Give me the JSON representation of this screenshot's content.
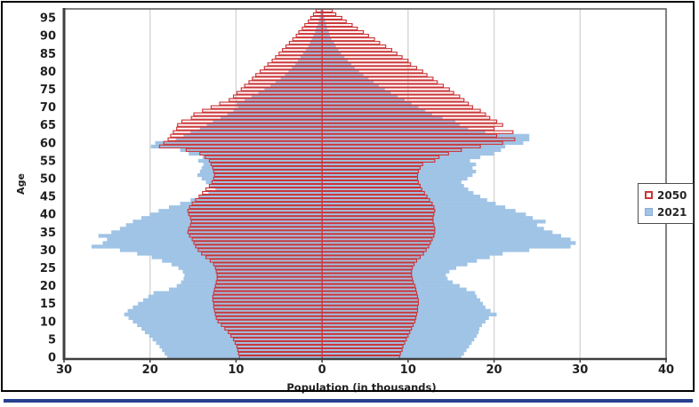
{
  "figure": {
    "frame_border_color": "#000000",
    "bottom_rule_color": "#27418F",
    "plot_border_color": "#595959",
    "axis_line_color": "#3f3f3f",
    "gridline_color": "#d6d6d6",
    "tick_text_color": "#1f1f1f",
    "background": "#ffffff"
  },
  "chart_data": {
    "type": "bar",
    "subtype": "population-pyramid",
    "title": "",
    "xlabel": "Population (in thousands)",
    "ylabel": "Age",
    "xlim": [
      -30,
      40
    ],
    "x_tick_values": [
      -30,
      -20,
      -10,
      0,
      10,
      20,
      30,
      40
    ],
    "x_tick_labels": [
      "30",
      "20",
      "10",
      "0",
      "10",
      "20",
      "30",
      "40"
    ],
    "y_tick_values": [
      0,
      5,
      10,
      15,
      20,
      25,
      30,
      35,
      40,
      45,
      50,
      55,
      60,
      65,
      70,
      75,
      80,
      85,
      90,
      95
    ],
    "y_tick_labels": [
      "0",
      "5",
      "10",
      "15",
      "20",
      "25",
      "30",
      "35",
      "40",
      "45",
      "50",
      "55",
      "60",
      "65",
      "70",
      "75",
      "80",
      "85",
      "90",
      "95"
    ],
    "age_min": 0,
    "age_max": 97,
    "grid": true,
    "legend_position": "right",
    "series": [
      {
        "name": "2050",
        "style": "outline",
        "color": "#CB3537",
        "fill": "none",
        "left": [
          9.6,
          9.7,
          9.8,
          9.9,
          10.1,
          10.3,
          10.6,
          10.9,
          11.3,
          11.7,
          12.1,
          12.3,
          12.4,
          12.5,
          12.6,
          12.6,
          12.7,
          12.7,
          12.6,
          12.5,
          12.4,
          12.3,
          12.2,
          12.2,
          12.3,
          12.4,
          12.6,
          13.0,
          13.5,
          14.0,
          14.4,
          14.7,
          14.9,
          15.1,
          15.4,
          15.6,
          15.5,
          15.3,
          15.2,
          15.3,
          15.5,
          15.6,
          15.4,
          15.1,
          14.7,
          14.3,
          13.9,
          13.5,
          13.1,
          12.8,
          12.6,
          12.5,
          12.6,
          12.7,
          12.9,
          13.1,
          13.6,
          14.2,
          15.8,
          18.9,
          18.4,
          17.9,
          17.6,
          17.3,
          16.9,
          16.8,
          16.3,
          15.2,
          14.9,
          13.9,
          12.9,
          11.9,
          10.8,
          10.3,
          9.9,
          9.4,
          9.0,
          8.5,
          8.1,
          7.7,
          7.2,
          6.7,
          6.3,
          5.8,
          5.4,
          5.0,
          4.6,
          4.2,
          3.8,
          3.4,
          3.0,
          2.7,
          2.3,
          2.0,
          1.6,
          1.3,
          1.0,
          0.7
        ],
        "right": [
          9.0,
          9.1,
          9.3,
          9.4,
          9.6,
          9.8,
          10.0,
          10.2,
          10.4,
          10.6,
          10.8,
          10.9,
          11.0,
          11.1,
          11.1,
          11.2,
          11.2,
          11.1,
          11.0,
          10.9,
          10.8,
          10.6,
          10.5,
          10.4,
          10.4,
          10.5,
          10.7,
          11.0,
          11.4,
          11.8,
          12.1,
          12.4,
          12.6,
          12.8,
          13.0,
          13.1,
          13.1,
          13.0,
          12.9,
          12.9,
          13.0,
          13.1,
          13.0,
          12.8,
          12.5,
          12.2,
          11.9,
          11.6,
          11.4,
          11.2,
          11.1,
          11.1,
          11.2,
          11.4,
          11.7,
          13.1,
          13.6,
          14.7,
          16.2,
          18.4,
          21.0,
          22.4,
          20.3,
          22.2,
          20.0,
          21.0,
          20.3,
          19.5,
          19.0,
          18.4,
          17.5,
          17.0,
          16.5,
          16.0,
          15.3,
          14.8,
          14.1,
          13.4,
          12.9,
          12.2,
          11.7,
          11.0,
          10.3,
          10.0,
          9.3,
          8.7,
          8.1,
          7.4,
          6.7,
          6.1,
          5.4,
          4.8,
          4.1,
          3.5,
          2.8,
          2.3,
          1.6,
          1.2
        ]
      },
      {
        "name": "2021",
        "style": "fill",
        "color": "#A0C4E6",
        "fill": "#A0C4E6",
        "left": [
          18.0,
          18.3,
          18.6,
          18.9,
          19.3,
          19.7,
          20.1,
          20.6,
          21.0,
          21.5,
          22.0,
          22.5,
          23.0,
          22.6,
          22.0,
          21.4,
          20.8,
          20.2,
          19.6,
          17.8,
          16.9,
          16.4,
          16.1,
          16.0,
          16.2,
          16.7,
          17.5,
          18.6,
          19.8,
          21.5,
          23.5,
          26.8,
          25.5,
          25.0,
          26.0,
          24.5,
          23.5,
          22.8,
          22.0,
          21.0,
          20.0,
          19.0,
          17.8,
          16.5,
          15.3,
          14.2,
          13.2,
          12.4,
          13.0,
          13.5,
          14.0,
          14.5,
          14.2,
          14.0,
          13.8,
          14.4,
          13.9,
          15.5,
          16.5,
          19.9,
          19.4,
          17.0,
          16.1,
          15.3,
          14.2,
          13.4,
          12.7,
          11.8,
          11.0,
          10.3,
          9.8,
          9.9,
          9.0,
          8.2,
          7.4,
          6.7,
          6.0,
          5.4,
          4.8,
          4.3,
          3.9,
          3.5,
          3.1,
          2.8,
          2.5,
          2.2,
          1.9,
          1.6,
          1.4,
          1.2,
          1.0,
          0.8,
          0.7,
          0.5,
          0.4,
          0.3,
          0.2,
          0.2
        ],
        "right": [
          16.2,
          16.5,
          16.8,
          17.1,
          17.4,
          17.7,
          18.0,
          18.2,
          18.3,
          18.6,
          19.0,
          19.4,
          20.3,
          19.6,
          19.0,
          18.7,
          18.4,
          18.0,
          17.8,
          16.8,
          16.0,
          15.2,
          14.6,
          14.4,
          14.8,
          15.6,
          16.9,
          18.0,
          19.5,
          21.0,
          24.1,
          28.9,
          29.5,
          28.9,
          27.8,
          26.8,
          25.8,
          25.0,
          26.0,
          24.5,
          23.7,
          22.5,
          21.3,
          20.2,
          19.2,
          18.4,
          17.6,
          17.0,
          16.5,
          16.2,
          16.9,
          17.5,
          17.9,
          17.5,
          17.9,
          17.2,
          18.4,
          20.0,
          20.8,
          21.3,
          23.4,
          24.1,
          24.1,
          19.0,
          17.0,
          16.0,
          15.5,
          14.0,
          12.8,
          12.0,
          11.2,
          10.4,
          9.6,
          8.8,
          8.0,
          7.3,
          6.6,
          6.0,
          5.4,
          4.8,
          4.3,
          3.8,
          3.4,
          3.0,
          2.6,
          2.2,
          1.9,
          1.6,
          1.4,
          1.1,
          0.9,
          0.8,
          0.6,
          0.5,
          0.4,
          0.3,
          0.2,
          0.2
        ]
      }
    ],
    "legend": {
      "items": [
        {
          "label": "2050",
          "style": "outline",
          "color": "#CB3537"
        },
        {
          "label": "2021",
          "style": "fill",
          "color": "#A0C4E6"
        }
      ]
    }
  }
}
